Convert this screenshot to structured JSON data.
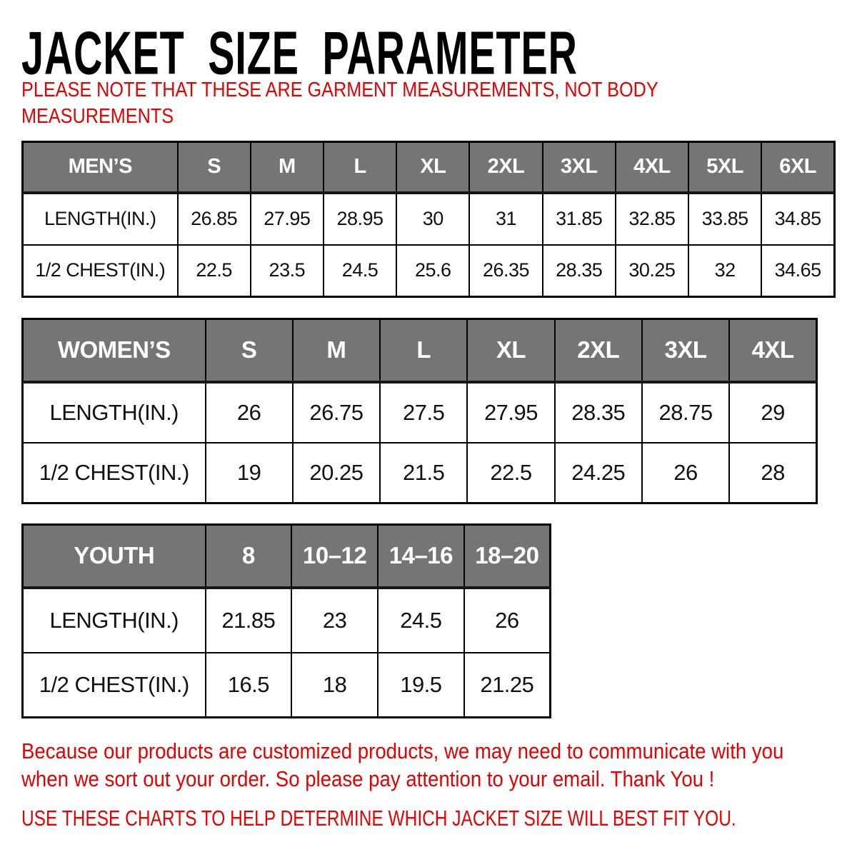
{
  "title": "JACKET SIZE PARAMETER",
  "note": {
    "line1": "PLEASE NOTE THAT THESE ARE GARMENT MEASUREMENTS, NOT BODY",
    "line2": "MEASUREMENTS"
  },
  "tables": [
    {
      "name": "MEN’S",
      "sizes": [
        "S",
        "M",
        "L",
        "XL",
        "2XL",
        "3XL",
        "4XL",
        "5XL",
        "6XL"
      ],
      "rows": [
        {
          "label": "LENGTH(IN.)",
          "values": [
            "26.85",
            "27.95",
            "28.95",
            "30",
            "31",
            "31.85",
            "32.85",
            "33.85",
            "34.85"
          ]
        },
        {
          "label": "1/2 CHEST(IN.)",
          "values": [
            "22.5",
            "23.5",
            "24.5",
            "25.6",
            "26.35",
            "28.35",
            "30.25",
            "32",
            "34.65"
          ]
        }
      ]
    },
    {
      "name": "WOMEN’S",
      "sizes": [
        "S",
        "M",
        "L",
        "XL",
        "2XL",
        "3XL",
        "4XL"
      ],
      "rows": [
        {
          "label": "LENGTH(IN.)",
          "values": [
            "26",
            "26.75",
            "27.5",
            "27.95",
            "28.35",
            "28.75",
            "29"
          ]
        },
        {
          "label": "1/2 CHEST(IN.)",
          "values": [
            "19",
            "20.25",
            "21.5",
            "22.5",
            "24.25",
            "26",
            "28"
          ]
        }
      ]
    },
    {
      "name": "YOUTH",
      "sizes": [
        "8",
        "10–12",
        "14–16",
        "18–20"
      ],
      "rows": [
        {
          "label": "LENGTH(IN.)",
          "values": [
            "21.85",
            "23",
            "24.5",
            "26"
          ]
        },
        {
          "label": "1/2 CHEST(IN.)",
          "values": [
            "16.5",
            "18",
            "19.5",
            "21.25"
          ]
        }
      ]
    }
  ],
  "footer": {
    "line1": "Because our products are customized products, we may need to communicate with you",
    "line2": "when we sort out your order. So please pay attention to your email. Thank You !",
    "charts_tip": "USE THESE CHARTS TO HELP DETERMINE WHICH JACKET SIZE WILL BEST FIT YOU."
  },
  "colors": {
    "accent_red": "#e60000",
    "header_gray": "#757575",
    "border_black": "#000000"
  }
}
